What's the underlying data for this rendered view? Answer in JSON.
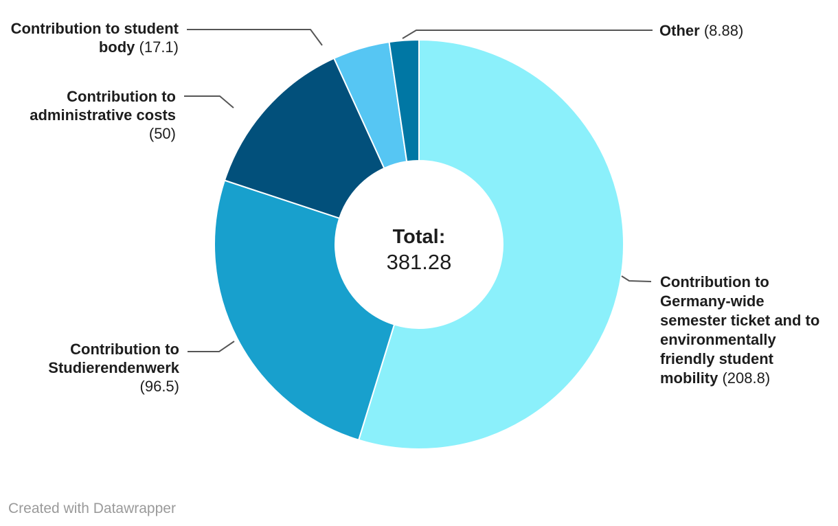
{
  "chart_data": {
    "type": "pie",
    "variant": "donut",
    "direction": "clockwise",
    "start_angle_deg": 0,
    "legend_position": "callout-labels",
    "total": 381.28,
    "center": {
      "title": "Total:",
      "value": "381.28"
    },
    "slices": [
      {
        "key": "germany-ticket",
        "label": "Contribution to Germany-wide semester ticket and to environmentally friendly student mobility",
        "value": 208.8,
        "value_display": "(208.8)",
        "color": "#8BF0FB"
      },
      {
        "key": "studierendenwerk",
        "label": "Contribution to Studierendenwerk",
        "value": 96.5,
        "value_display": "(96.5)",
        "color": "#18A0CD"
      },
      {
        "key": "admin-costs",
        "label": "Contribution to administrative costs",
        "value": 50,
        "value_display": "(50)",
        "color": "#02507B"
      },
      {
        "key": "student-body",
        "label": "Contribution to student body",
        "value": 17.1,
        "value_display": "(17.1)",
        "color": "#56C6F3"
      },
      {
        "key": "other",
        "label": "Other",
        "value": 8.88,
        "value_display": "(8.88)",
        "color": "#0077A4"
      }
    ]
  },
  "footer": {
    "credit": "Created with Datawrapper"
  },
  "colors": {
    "background": "#ffffff",
    "label_text": "#1d1d1d",
    "leader_line": "#555555",
    "separator": "#ffffff",
    "credit_text": "#9a9a9a"
  }
}
